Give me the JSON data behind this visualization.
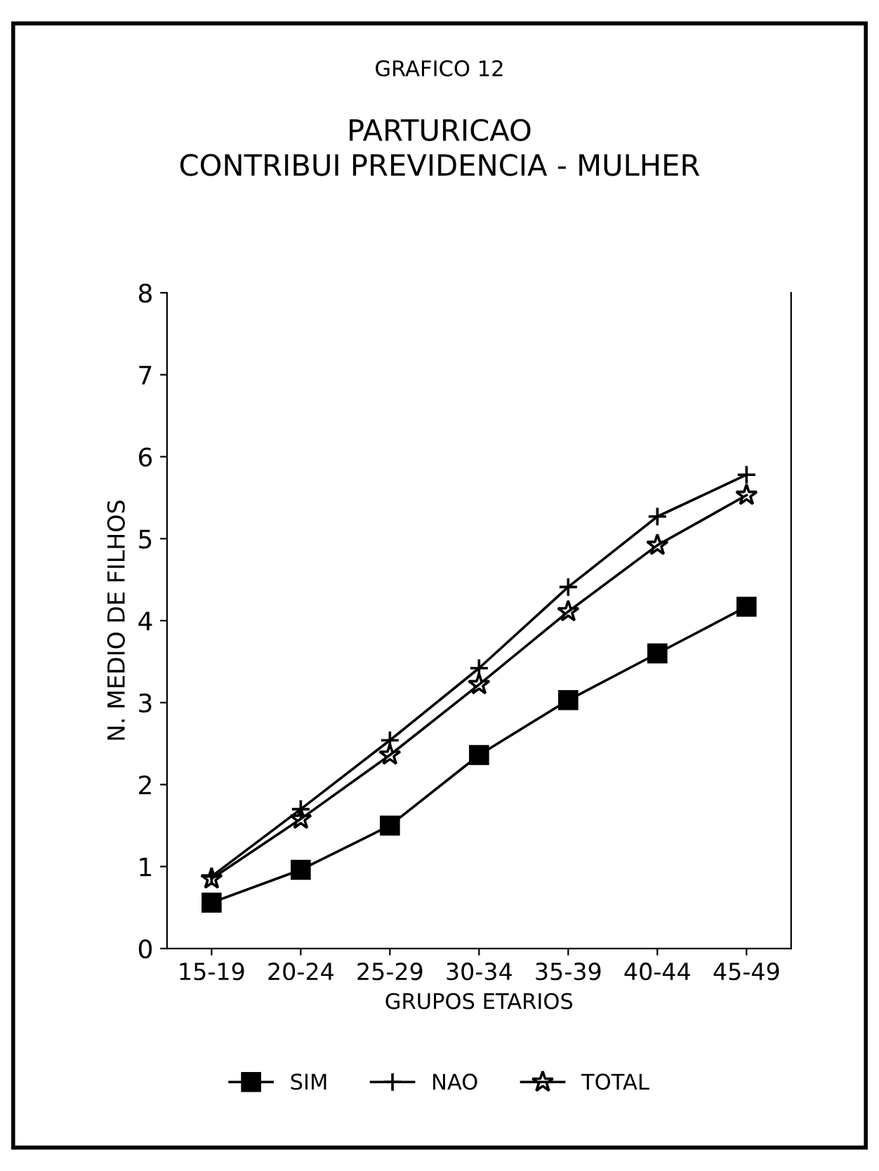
{
  "chart_data": {
    "type": "line",
    "title": "GRAFICO 12",
    "subtitle": "PARTURICAO\nCONTRIBUI PREVIDENCIA - MULHER",
    "xlabel": "GRUPOS ETARIOS",
    "ylabel": "N. MEDIO DE FILHOS",
    "categories": [
      "15-19",
      "20-24",
      "25-29",
      "30-34",
      "35-39",
      "40-44",
      "45-49"
    ],
    "series": [
      {
        "name": "SIM",
        "color": "#000000",
        "marker": "square",
        "values": [
          0.56,
          0.96,
          1.5,
          2.36,
          3.03,
          3.6,
          4.17
        ]
      },
      {
        "name": "NAO",
        "color": "#000000",
        "marker": "cross",
        "values": [
          0.88,
          1.7,
          2.54,
          3.42,
          4.41,
          5.27,
          5.78
        ]
      },
      {
        "name": "TOTAL",
        "color": "#000000",
        "marker": "star",
        "values": [
          0.85,
          1.58,
          2.36,
          3.22,
          4.11,
          4.92,
          5.53
        ]
      }
    ],
    "ylim": [
      0,
      8
    ],
    "yticks": [
      0,
      1,
      2,
      3,
      4,
      5,
      6,
      7,
      8
    ],
    "grid": false,
    "legend": "bottom",
    "line_style": "solid"
  }
}
